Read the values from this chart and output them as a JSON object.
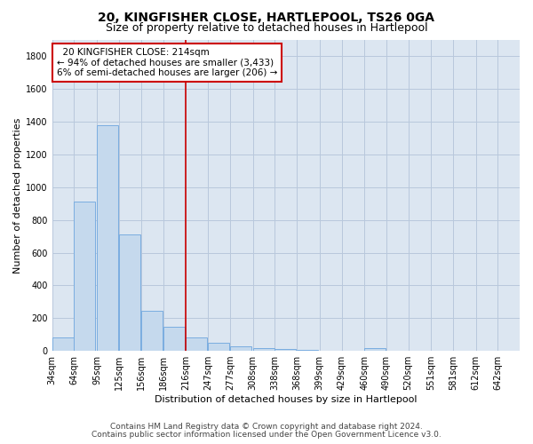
{
  "title1": "20, KINGFISHER CLOSE, HARTLEPOOL, TS26 0GA",
  "title2": "Size of property relative to detached houses in Hartlepool",
  "xlabel": "Distribution of detached houses by size in Hartlepool",
  "ylabel": "Number of detached properties",
  "footer1": "Contains HM Land Registry data © Crown copyright and database right 2024.",
  "footer2": "Contains public sector information licensed under the Open Government Licence v3.0.",
  "annotation_line1": "20 KINGFISHER CLOSE: 214sqm",
  "annotation_line2": "← 94% of detached houses are smaller (3,433)",
  "annotation_line3": "6% of semi-detached houses are larger (206) →",
  "categories": [
    "34sqm",
    "64sqm",
    "95sqm",
    "125sqm",
    "156sqm",
    "186sqm",
    "216sqm",
    "247sqm",
    "277sqm",
    "308sqm",
    "338sqm",
    "368sqm",
    "399sqm",
    "429sqm",
    "460sqm",
    "490sqm",
    "520sqm",
    "551sqm",
    "581sqm",
    "612sqm",
    "642sqm"
  ],
  "bin_starts": [
    34,
    64,
    95,
    125,
    156,
    186,
    216,
    247,
    277,
    308,
    338,
    368,
    399,
    429,
    460,
    490,
    520,
    551,
    581,
    612,
    642
  ],
  "values": [
    80,
    910,
    1380,
    710,
    245,
    145,
    80,
    47,
    30,
    18,
    12,
    5,
    3,
    2,
    15,
    1,
    1,
    0,
    0,
    0,
    0
  ],
  "ylim": [
    0,
    1900
  ],
  "yticks": [
    0,
    200,
    400,
    600,
    800,
    1000,
    1200,
    1400,
    1600,
    1800
  ],
  "bar_color": "#c5d9ed",
  "bar_edge_color": "#7aade0",
  "vline_color": "#cc0000",
  "vline_x": 216,
  "grid_color": "#b8c8dc",
  "background_color": "#dce6f1",
  "annotation_box_facecolor": "#ffffff",
  "annotation_box_edgecolor": "#cc0000",
  "title1_fontsize": 10,
  "title2_fontsize": 9,
  "ylabel_fontsize": 8,
  "xlabel_fontsize": 8,
  "tick_fontsize": 7,
  "annotation_fontsize": 7.5,
  "footer_fontsize": 6.5
}
